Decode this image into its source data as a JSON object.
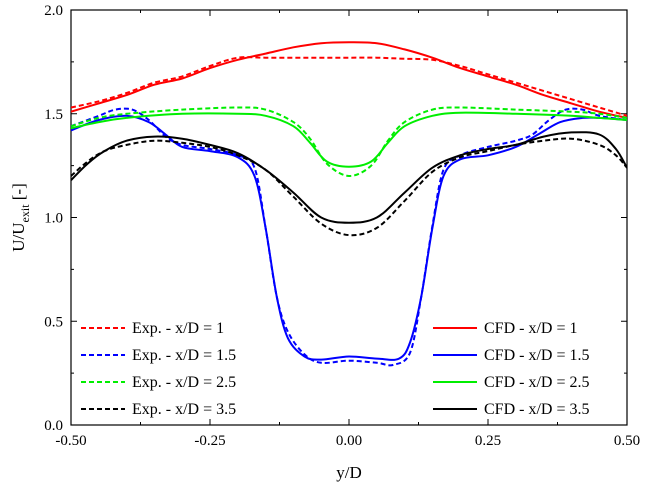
{
  "chart_data": {
    "type": "line",
    "title": "",
    "xlabel": "y/D",
    "ylabel": {
      "main": "U/U",
      "sub": "exit",
      "suffix": " [-]"
    },
    "xlim": [
      -0.5,
      0.5
    ],
    "ylim": [
      0.0,
      2.0
    ],
    "x_ticks": [
      -0.5,
      -0.25,
      0.0,
      0.25,
      0.5
    ],
    "x_tick_labels": [
      "-0.50",
      "-0.25",
      "0.00",
      "0.25",
      "0.50"
    ],
    "y_ticks": [
      0.0,
      0.5,
      1.0,
      1.5,
      2.0
    ],
    "y_tick_labels": [
      "0.0",
      "0.5",
      "1.0",
      "1.5",
      "2.0"
    ],
    "grid": false,
    "legend_placement": [
      "bottom-left",
      "bottom-right"
    ],
    "series": [
      {
        "name": "Exp. - x/D = 1",
        "color": "#ff0000",
        "style": "dashed",
        "legend_group": "left",
        "points": [
          [
            -0.5,
            1.53
          ],
          [
            -0.45,
            1.56
          ],
          [
            -0.4,
            1.6
          ],
          [
            -0.35,
            1.65
          ],
          [
            -0.3,
            1.68
          ],
          [
            -0.25,
            1.73
          ],
          [
            -0.2,
            1.77
          ],
          [
            -0.15,
            1.77
          ],
          [
            -0.1,
            1.77
          ],
          [
            -0.05,
            1.77
          ],
          [
            0.0,
            1.77
          ],
          [
            0.05,
            1.77
          ],
          [
            0.1,
            1.765
          ],
          [
            0.15,
            1.76
          ],
          [
            0.2,
            1.73
          ],
          [
            0.25,
            1.69
          ],
          [
            0.3,
            1.65
          ],
          [
            0.35,
            1.61
          ],
          [
            0.4,
            1.57
          ],
          [
            0.45,
            1.53
          ],
          [
            0.5,
            1.49
          ]
        ]
      },
      {
        "name": "CFD - x/D = 1",
        "color": "#ff0000",
        "style": "solid",
        "legend_group": "right",
        "points": [
          [
            -0.5,
            1.51
          ],
          [
            -0.45,
            1.55
          ],
          [
            -0.4,
            1.59
          ],
          [
            -0.35,
            1.64
          ],
          [
            -0.3,
            1.67
          ],
          [
            -0.25,
            1.72
          ],
          [
            -0.2,
            1.76
          ],
          [
            -0.15,
            1.79
          ],
          [
            -0.1,
            1.82
          ],
          [
            -0.05,
            1.84
          ],
          [
            0.0,
            1.845
          ],
          [
            0.05,
            1.84
          ],
          [
            0.1,
            1.81
          ],
          [
            0.15,
            1.77
          ],
          [
            0.2,
            1.72
          ],
          [
            0.25,
            1.68
          ],
          [
            0.3,
            1.64
          ],
          [
            0.35,
            1.59
          ],
          [
            0.4,
            1.55
          ],
          [
            0.45,
            1.51
          ],
          [
            0.5,
            1.48
          ]
        ]
      },
      {
        "name": "Exp. - x/D = 1.5",
        "color": "#0000ff",
        "style": "dashed",
        "legend_group": "left",
        "points": [
          [
            -0.5,
            1.44
          ],
          [
            -0.45,
            1.49
          ],
          [
            -0.42,
            1.52
          ],
          [
            -0.39,
            1.52
          ],
          [
            -0.36,
            1.47
          ],
          [
            -0.33,
            1.39
          ],
          [
            -0.3,
            1.35
          ],
          [
            -0.25,
            1.33
          ],
          [
            -0.2,
            1.3
          ],
          [
            -0.17,
            1.24
          ],
          [
            -0.15,
            0.95
          ],
          [
            -0.13,
            0.62
          ],
          [
            -0.11,
            0.45
          ],
          [
            -0.08,
            0.34
          ],
          [
            -0.05,
            0.3
          ],
          [
            0.0,
            0.31
          ],
          [
            0.05,
            0.3
          ],
          [
            0.08,
            0.29
          ],
          [
            0.11,
            0.35
          ],
          [
            0.13,
            0.62
          ],
          [
            0.15,
            0.96
          ],
          [
            0.17,
            1.23
          ],
          [
            0.2,
            1.3
          ],
          [
            0.25,
            1.34
          ],
          [
            0.3,
            1.37
          ],
          [
            0.33,
            1.4
          ],
          [
            0.36,
            1.47
          ],
          [
            0.39,
            1.52
          ],
          [
            0.42,
            1.52
          ],
          [
            0.45,
            1.49
          ],
          [
            0.5,
            1.47
          ]
        ]
      },
      {
        "name": "CFD - x/D = 1.5",
        "color": "#0000ff",
        "style": "solid",
        "legend_group": "right",
        "points": [
          [
            -0.5,
            1.42
          ],
          [
            -0.45,
            1.47
          ],
          [
            -0.4,
            1.49
          ],
          [
            -0.36,
            1.46
          ],
          [
            -0.33,
            1.4
          ],
          [
            -0.3,
            1.34
          ],
          [
            -0.25,
            1.32
          ],
          [
            -0.2,
            1.29
          ],
          [
            -0.17,
            1.2
          ],
          [
            -0.15,
            0.95
          ],
          [
            -0.13,
            0.62
          ],
          [
            -0.11,
            0.42
          ],
          [
            -0.08,
            0.33
          ],
          [
            -0.05,
            0.315
          ],
          [
            0.0,
            0.33
          ],
          [
            0.05,
            0.32
          ],
          [
            0.09,
            0.32
          ],
          [
            0.11,
            0.4
          ],
          [
            0.13,
            0.62
          ],
          [
            0.15,
            0.95
          ],
          [
            0.17,
            1.2
          ],
          [
            0.2,
            1.28
          ],
          [
            0.25,
            1.3
          ],
          [
            0.3,
            1.34
          ],
          [
            0.34,
            1.4
          ],
          [
            0.38,
            1.46
          ],
          [
            0.42,
            1.48
          ],
          [
            0.45,
            1.48
          ],
          [
            0.5,
            1.47
          ]
        ]
      },
      {
        "name": "Exp. - x/D = 2.5",
        "color": "#00ee00",
        "style": "dashed",
        "legend_group": "left",
        "points": [
          [
            -0.5,
            1.44
          ],
          [
            -0.45,
            1.48
          ],
          [
            -0.4,
            1.5
          ],
          [
            -0.3,
            1.52
          ],
          [
            -0.2,
            1.53
          ],
          [
            -0.15,
            1.52
          ],
          [
            -0.1,
            1.46
          ],
          [
            -0.07,
            1.38
          ],
          [
            -0.04,
            1.26
          ],
          [
            0.0,
            1.2
          ],
          [
            0.04,
            1.25
          ],
          [
            0.07,
            1.37
          ],
          [
            0.1,
            1.46
          ],
          [
            0.15,
            1.52
          ],
          [
            0.2,
            1.53
          ],
          [
            0.3,
            1.52
          ],
          [
            0.4,
            1.51
          ],
          [
            0.45,
            1.5
          ],
          [
            0.5,
            1.48
          ]
        ]
      },
      {
        "name": "CFD - x/D = 2.5",
        "color": "#00ee00",
        "style": "solid",
        "legend_group": "right",
        "points": [
          [
            -0.5,
            1.43
          ],
          [
            -0.45,
            1.46
          ],
          [
            -0.4,
            1.48
          ],
          [
            -0.3,
            1.5
          ],
          [
            -0.2,
            1.5
          ],
          [
            -0.15,
            1.49
          ],
          [
            -0.1,
            1.44
          ],
          [
            -0.07,
            1.36
          ],
          [
            -0.04,
            1.27
          ],
          [
            0.0,
            1.245
          ],
          [
            0.04,
            1.27
          ],
          [
            0.07,
            1.36
          ],
          [
            0.1,
            1.44
          ],
          [
            0.15,
            1.49
          ],
          [
            0.2,
            1.505
          ],
          [
            0.3,
            1.5
          ],
          [
            0.4,
            1.49
          ],
          [
            0.45,
            1.48
          ],
          [
            0.5,
            1.47
          ]
        ]
      },
      {
        "name": "Exp. - x/D = 3.5",
        "color": "#000000",
        "style": "dashed",
        "legend_group": "left",
        "points": [
          [
            -0.5,
            1.2
          ],
          [
            -0.47,
            1.27
          ],
          [
            -0.44,
            1.32
          ],
          [
            -0.4,
            1.35
          ],
          [
            -0.35,
            1.37
          ],
          [
            -0.3,
            1.36
          ],
          [
            -0.25,
            1.34
          ],
          [
            -0.2,
            1.3
          ],
          [
            -0.15,
            1.23
          ],
          [
            -0.1,
            1.1
          ],
          [
            -0.05,
            0.97
          ],
          [
            0.0,
            0.915
          ],
          [
            0.05,
            0.95
          ],
          [
            0.1,
            1.08
          ],
          [
            0.15,
            1.22
          ],
          [
            0.2,
            1.29
          ],
          [
            0.25,
            1.32
          ],
          [
            0.3,
            1.35
          ],
          [
            0.35,
            1.37
          ],
          [
            0.4,
            1.38
          ],
          [
            0.45,
            1.35
          ],
          [
            0.48,
            1.3
          ],
          [
            0.5,
            1.24
          ]
        ]
      },
      {
        "name": "CFD - x/D = 3.5",
        "color": "#000000",
        "style": "solid",
        "legend_group": "right",
        "points": [
          [
            -0.5,
            1.18
          ],
          [
            -0.47,
            1.26
          ],
          [
            -0.44,
            1.32
          ],
          [
            -0.4,
            1.37
          ],
          [
            -0.35,
            1.39
          ],
          [
            -0.3,
            1.38
          ],
          [
            -0.25,
            1.35
          ],
          [
            -0.2,
            1.31
          ],
          [
            -0.15,
            1.23
          ],
          [
            -0.1,
            1.12
          ],
          [
            -0.05,
            1.0
          ],
          [
            0.0,
            0.975
          ],
          [
            0.05,
            1.0
          ],
          [
            0.1,
            1.12
          ],
          [
            0.15,
            1.24
          ],
          [
            0.2,
            1.3
          ],
          [
            0.25,
            1.33
          ],
          [
            0.3,
            1.35
          ],
          [
            0.35,
            1.39
          ],
          [
            0.4,
            1.41
          ],
          [
            0.45,
            1.4
          ],
          [
            0.48,
            1.33
          ],
          [
            0.5,
            1.24
          ]
        ]
      }
    ]
  }
}
